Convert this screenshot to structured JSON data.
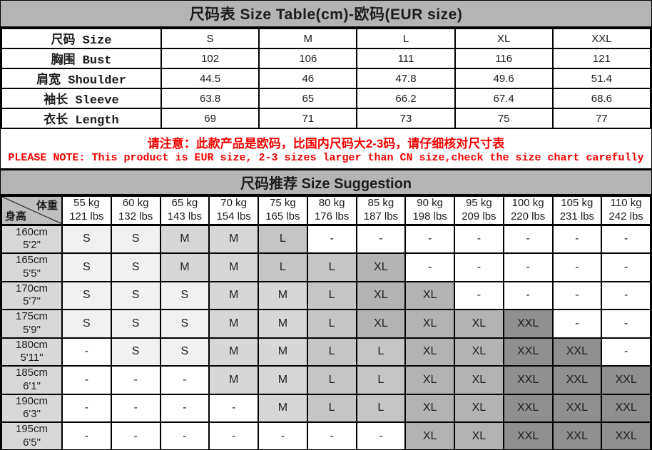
{
  "colors": {
    "page_bg": "#b4b4b4",
    "title_bar_bg": "#b4b4b4",
    "border": "#000000",
    "note_red": "#f20000",
    "text": "#1c1c1c",
    "corner_bg": "#bfbfbf",
    "height_col_bg": "#d8d8d8",
    "cell_S": "#f1f1f1",
    "cell_M": "#d7d7d7",
    "cell_L": "#c5c5c5",
    "cell_XL": "#b3b3b3",
    "cell_XXL": "#8f8f8f",
    "cell_dash": "#ffffff"
  },
  "size_table": {
    "title": "尺码表 Size Table(cm)-欧码(EUR size)",
    "rows": [
      {
        "label": "尺码 Size",
        "values": [
          "S",
          "M",
          "L",
          "XL",
          "XXL"
        ]
      },
      {
        "label": "胸围 Bust",
        "values": [
          "102",
          "106",
          "111",
          "116",
          "121"
        ]
      },
      {
        "label": "肩宽 Shoulder",
        "values": [
          "44.5",
          "46",
          "47.8",
          "49.6",
          "51.4"
        ]
      },
      {
        "label": "袖长 Sleeve",
        "values": [
          "63.8",
          "65",
          "66.2",
          "67.4",
          "68.6"
        ]
      },
      {
        "label": "衣长 Length",
        "values": [
          "69",
          "71",
          "73",
          "75",
          "77"
        ]
      }
    ]
  },
  "note": {
    "line1": "请注意：此款产品是欧码，比国内尺码大2-3码，请仔细核对尺寸表",
    "line2": "PLEASE NOTE: This product is EUR size, 2-3 sizes larger than CN size,check the size chart carefully"
  },
  "suggestion": {
    "title": "尺码推荐 Size Suggestion",
    "corner": {
      "weight": "体重",
      "height": "身高"
    },
    "weights": [
      {
        "kg": "55 kg",
        "lbs": "121 lbs"
      },
      {
        "kg": "60 kg",
        "lbs": "132 lbs"
      },
      {
        "kg": "65 kg",
        "lbs": "143 lbs"
      },
      {
        "kg": "70 kg",
        "lbs": "154 lbs"
      },
      {
        "kg": "75 kg",
        "lbs": "165 lbs"
      },
      {
        "kg": "80 kg",
        "lbs": "176 lbs"
      },
      {
        "kg": "85 kg",
        "lbs": "187 lbs"
      },
      {
        "kg": "90 kg",
        "lbs": "198 lbs"
      },
      {
        "kg": "95 kg",
        "lbs": "209 lbs"
      },
      {
        "kg": "100 kg",
        "lbs": "220 lbs"
      },
      {
        "kg": "105 kg",
        "lbs": "231 lbs"
      },
      {
        "kg": "110 kg",
        "lbs": "242 lbs"
      }
    ],
    "heights": [
      {
        "cm": "160cm",
        "ft": "5'2\""
      },
      {
        "cm": "165cm",
        "ft": "5'5\""
      },
      {
        "cm": "170cm",
        "ft": "5'7\""
      },
      {
        "cm": "175cm",
        "ft": "5'9\""
      },
      {
        "cm": "180cm",
        "ft": "5'11\""
      },
      {
        "cm": "185cm",
        "ft": "6'1\""
      },
      {
        "cm": "190cm",
        "ft": "6'3\""
      },
      {
        "cm": "195cm",
        "ft": "6'5\""
      }
    ],
    "cells": [
      [
        "S",
        "S",
        "M",
        "M",
        "L",
        "-",
        "-",
        "-",
        "-",
        "-",
        "-",
        "-"
      ],
      [
        "S",
        "S",
        "M",
        "M",
        "L",
        "L",
        "XL",
        "-",
        "-",
        "-",
        "-",
        "-"
      ],
      [
        "S",
        "S",
        "S",
        "M",
        "M",
        "L",
        "XL",
        "XL",
        "-",
        "-",
        "-",
        "-"
      ],
      [
        "S",
        "S",
        "S",
        "M",
        "M",
        "L",
        "XL",
        "XL",
        "XL",
        "XXL",
        "-",
        "-"
      ],
      [
        "-",
        "S",
        "S",
        "M",
        "M",
        "L",
        "L",
        "XL",
        "XL",
        "XXL",
        "XXL",
        "-"
      ],
      [
        "-",
        "-",
        "-",
        "M",
        "M",
        "L",
        "L",
        "XL",
        "XL",
        "XXL",
        "XXL",
        "XXL"
      ],
      [
        "-",
        "-",
        "-",
        "-",
        "M",
        "L",
        "L",
        "XL",
        "XL",
        "XXL",
        "XXL",
        "XXL"
      ],
      [
        "-",
        "-",
        "-",
        "-",
        "-",
        "-",
        "-",
        "XL",
        "XL",
        "XXL",
        "XXL",
        "XXL"
      ]
    ]
  }
}
